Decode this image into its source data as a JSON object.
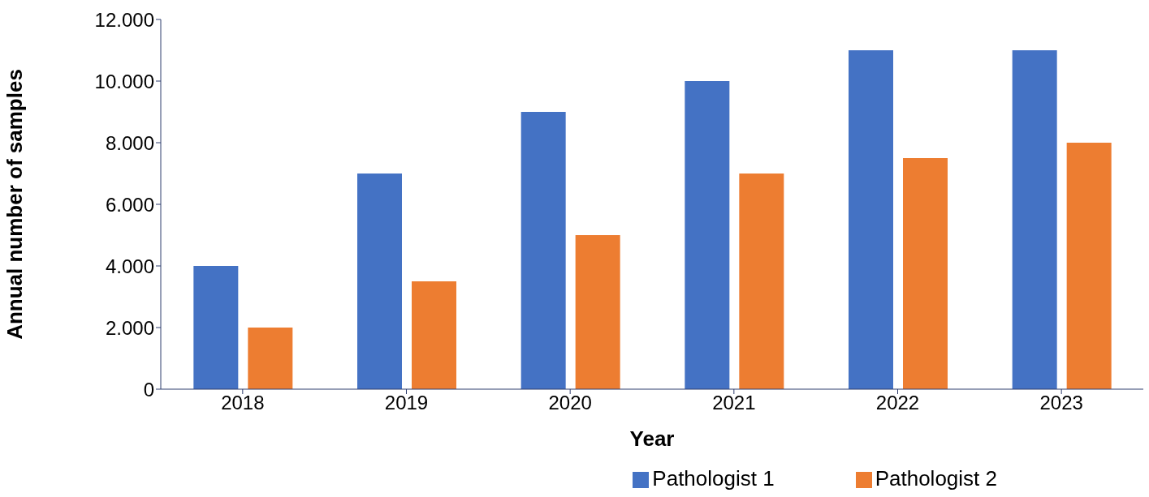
{
  "chart_data": {
    "type": "bar",
    "xlabel": "Year",
    "ylabel": "Annual number of samples",
    "categories": [
      "2018",
      "2019",
      "2020",
      "2021",
      "2022",
      "2023"
    ],
    "series": [
      {
        "name": "Pathologist 1",
        "color": "#4472c4",
        "values": [
          4000,
          7000,
          9000,
          10000,
          11000,
          11000
        ]
      },
      {
        "name": "Pathologist 2",
        "color": "#ed7d31",
        "values": [
          2000,
          3500,
          5000,
          7000,
          7500,
          8000
        ]
      }
    ],
    "ylim": [
      0,
      12000
    ],
    "yticks": [
      0,
      {
        "value": 2000,
        "label": "2.000"
      },
      {
        "value": 4000,
        "label": "4.000"
      },
      {
        "value": 6000,
        "label": "6.000"
      },
      {
        "value": 8000,
        "label": "8.000"
      },
      {
        "value": 10000,
        "label": "10.000"
      },
      {
        "value": 12000,
        "label": "12.000"
      }
    ],
    "grid": false,
    "legend": "bottom right"
  }
}
